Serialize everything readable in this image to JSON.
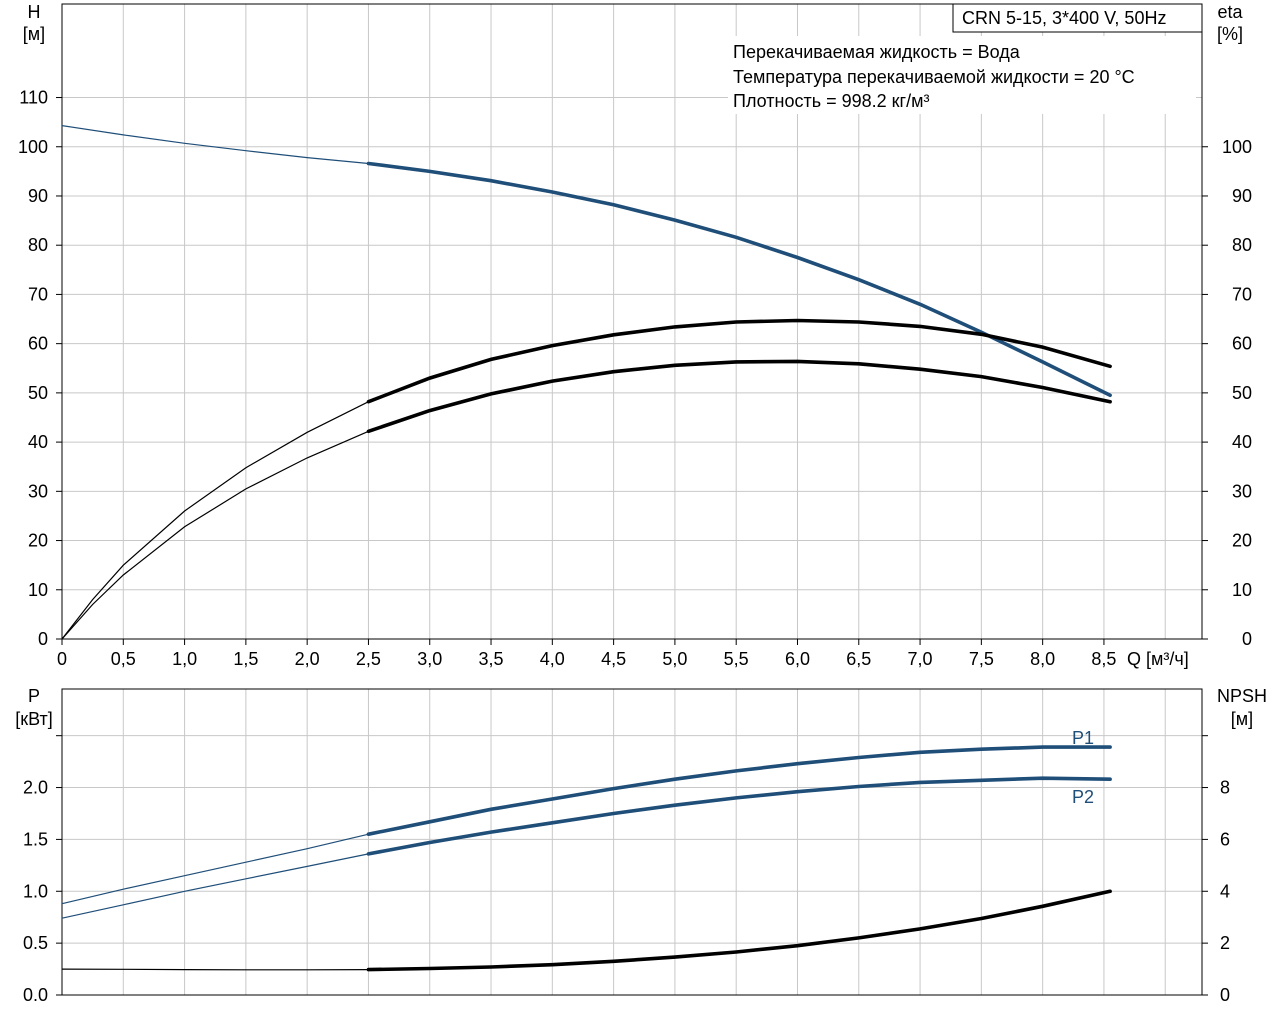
{
  "info": {
    "model": "CRN 5-15, 3*400 V, 50Hz",
    "lines": [
      "Перекачиваемая жидкость = Вода",
      "Температура перекачиваемой жидкости = 20 °C",
      "Плотность = 998.2 кг/м³"
    ]
  },
  "chart_data": [
    {
      "type": "line",
      "panel": "top",
      "x_axis": {
        "label": "Q [м³/ч]",
        "range": [
          0,
          9.3
        ],
        "ticks": [
          0,
          0.5,
          1,
          1.5,
          2,
          2.5,
          3,
          3.5,
          4,
          4.5,
          5,
          5.5,
          6,
          6.5,
          7,
          7.5,
          8,
          8.5
        ],
        "tick_labels": [
          "0",
          "0,5",
          "1,0",
          "1,5",
          "2,0",
          "2,5",
          "3,0",
          "3,5",
          "4,0",
          "4,5",
          "5,0",
          "5,5",
          "6,0",
          "6,5",
          "7,0",
          "7,5",
          "8,0",
          "8,5"
        ]
      },
      "y_left": {
        "label_top": "H",
        "label_bottom": "[м]",
        "range": [
          0,
          129
        ],
        "ticks": [
          0,
          10,
          20,
          30,
          40,
          50,
          60,
          70,
          80,
          90,
          100,
          110
        ]
      },
      "y_right": {
        "label_top": "eta",
        "label_bottom": "[%]",
        "range": [
          0,
          129
        ],
        "ticks": [
          0,
          10,
          20,
          30,
          40,
          50,
          60,
          70,
          80,
          90,
          100
        ]
      },
      "grid": true,
      "series": [
        {
          "key": "head",
          "axis": "left",
          "color": "#1f4e79",
          "operating_start": 2.5,
          "x": [
            0,
            0.5,
            1,
            1.5,
            2,
            2.5,
            3,
            3.5,
            4,
            4.5,
            5,
            5.5,
            6,
            6.5,
            7,
            7.5,
            8,
            8.55
          ],
          "y": [
            104.3,
            102.4,
            100.7,
            99.2,
            97.8,
            96.6,
            95.0,
            93.1,
            90.8,
            88.2,
            85.1,
            81.6,
            77.5,
            73.0,
            68.0,
            62.3,
            56.3,
            49.5
          ]
        },
        {
          "key": "eta_pump",
          "axis": "right",
          "color": "#000000",
          "operating_start": 2.5,
          "x": [
            0,
            0.25,
            0.5,
            1,
            1.5,
            2,
            2.5,
            3,
            3.5,
            4,
            4.5,
            5,
            5.5,
            6,
            6.5,
            7,
            7.5,
            8,
            8.55
          ],
          "y": [
            0,
            8,
            15,
            26,
            34.8,
            42,
            48.2,
            53,
            56.8,
            59.6,
            61.8,
            63.4,
            64.4,
            64.7,
            64.4,
            63.5,
            61.9,
            59.3,
            55.4
          ]
        },
        {
          "key": "eta_total",
          "axis": "right",
          "color": "#000000",
          "operating_start": 2.5,
          "x": [
            0,
            0.25,
            0.5,
            1,
            1.5,
            2,
            2.5,
            3,
            3.5,
            4,
            4.5,
            5,
            5.5,
            6,
            6.5,
            7,
            7.5,
            8,
            8.55
          ],
          "y": [
            0,
            7,
            13,
            22.8,
            30.5,
            36.8,
            42.2,
            46.4,
            49.8,
            52.4,
            54.3,
            55.6,
            56.3,
            56.4,
            55.9,
            54.8,
            53.3,
            51.1,
            48.2
          ]
        }
      ]
    },
    {
      "type": "line",
      "panel": "bottom",
      "x_axis": {
        "range": [
          0,
          9.3
        ],
        "ticks": [
          0,
          0.5,
          1,
          1.5,
          2,
          2.5,
          3,
          3.5,
          4,
          4.5,
          5,
          5.5,
          6,
          6.5,
          7,
          7.5,
          8,
          8.5
        ]
      },
      "y_left": {
        "label_top": "P",
        "label_bottom": "[кВт]",
        "range": [
          0,
          2.95
        ],
        "ticks": [
          0,
          0.5,
          1.0,
          1.5,
          2.0,
          2.5
        ],
        "tick_labels": [
          "0.0",
          "0.5",
          "1.0",
          "1.5",
          "2.0",
          ""
        ]
      },
      "y_right": {
        "label_top": "NPSH",
        "label_bottom": "[м]",
        "range": [
          0,
          11.8
        ],
        "ticks": [
          0,
          2,
          4,
          6,
          8,
          10
        ],
        "tick_labels": [
          "0",
          "2",
          "4",
          "6",
          "8",
          ""
        ]
      },
      "grid": true,
      "series": [
        {
          "key": "P1",
          "name": "P1",
          "axis": "left",
          "color": "#1f4e79",
          "operating_start": 2.5,
          "x": [
            0,
            0.5,
            1,
            1.5,
            2,
            2.5,
            3,
            3.5,
            4,
            4.5,
            5,
            5.5,
            6,
            6.5,
            7,
            7.5,
            8,
            8.55
          ],
          "y": [
            0.88,
            1.02,
            1.15,
            1.28,
            1.41,
            1.55,
            1.67,
            1.79,
            1.89,
            1.99,
            2.08,
            2.16,
            2.23,
            2.29,
            2.34,
            2.37,
            2.39,
            2.39
          ]
        },
        {
          "key": "P2",
          "name": "P2",
          "axis": "left",
          "color": "#1f4e79",
          "operating_start": 2.5,
          "x": [
            0,
            0.5,
            1,
            1.5,
            2,
            2.5,
            3,
            3.5,
            4,
            4.5,
            5,
            5.5,
            6,
            6.5,
            7,
            7.5,
            8,
            8.55
          ],
          "y": [
            0.74,
            0.87,
            1.0,
            1.12,
            1.24,
            1.36,
            1.47,
            1.57,
            1.66,
            1.75,
            1.83,
            1.9,
            1.96,
            2.01,
            2.05,
            2.07,
            2.09,
            2.08
          ]
        },
        {
          "key": "NPSH",
          "axis": "right",
          "color": "#000000",
          "operating_start": 2.5,
          "x": [
            0,
            0.5,
            1,
            1.5,
            2,
            2.5,
            3,
            3.5,
            4,
            4.5,
            5,
            5.5,
            6,
            6.5,
            7,
            7.5,
            8,
            8.55
          ],
          "y": [
            1.0,
            0.99,
            0.98,
            0.97,
            0.97,
            0.98,
            1.02,
            1.08,
            1.17,
            1.3,
            1.46,
            1.66,
            1.9,
            2.2,
            2.55,
            2.95,
            3.42,
            4.0
          ]
        }
      ]
    }
  ]
}
